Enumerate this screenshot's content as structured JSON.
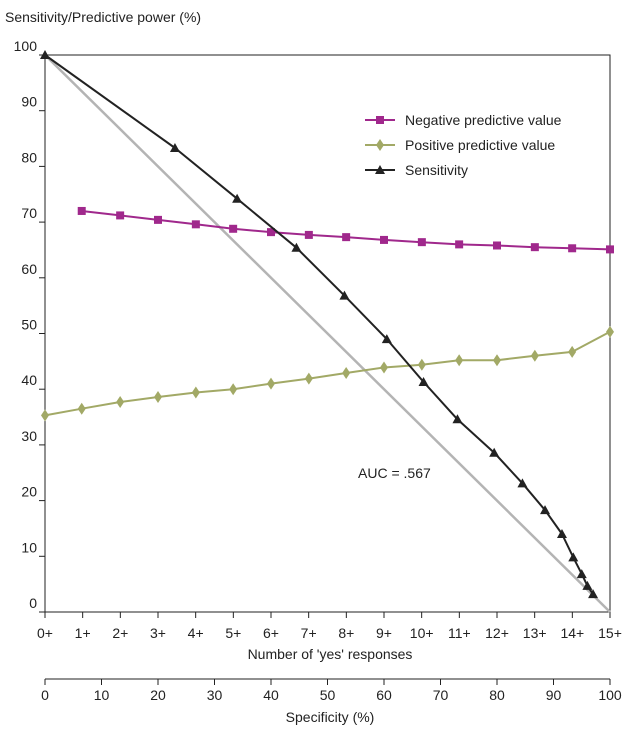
{
  "chart_data": {
    "type": "line",
    "ylabel": "Sensitivity/Predictive power (%)",
    "xlabel": "Number of 'yes' responses",
    "x2label": "Specificity (%)",
    "ylim": [
      0,
      100
    ],
    "y_ticks": [
      "0",
      "10",
      "20",
      "30",
      "40",
      "50",
      "60",
      "70",
      "80",
      "90",
      "100"
    ],
    "x_ticks": [
      "0+",
      "1+",
      "2+",
      "3+",
      "4+",
      "5+",
      "6+",
      "7+",
      "8+",
      "9+",
      "10+",
      "11+",
      "12+",
      "13+",
      "14+",
      "15+"
    ],
    "x2_ticks": [
      "0",
      "10",
      "20",
      "30",
      "40",
      "50",
      "60",
      "70",
      "80",
      "90",
      "100"
    ],
    "x2lim": [
      0,
      100
    ],
    "grid": false,
    "legend_position": "top-right",
    "annotation": "AUC = .567",
    "series": [
      {
        "name": "Negative predictive value",
        "color": "#a0288c",
        "marker": "square",
        "points": [
          [
            6.5,
            72
          ],
          [
            13.3,
            71.2
          ],
          [
            20,
            70.4
          ],
          [
            26.7,
            69.6
          ],
          [
            33.3,
            68.8
          ],
          [
            40,
            68.2
          ],
          [
            46.7,
            67.7
          ],
          [
            53.3,
            67.3
          ],
          [
            60,
            66.8
          ],
          [
            66.7,
            66.4
          ],
          [
            73.3,
            66
          ],
          [
            80,
            65.8
          ],
          [
            86.7,
            65.5
          ],
          [
            93.3,
            65.3
          ],
          [
            100,
            65.1
          ]
        ]
      },
      {
        "name": "Positive predictive value",
        "color": "#a2a966",
        "marker": "diamond",
        "points": [
          [
            0,
            35.3
          ],
          [
            6.5,
            36.5
          ],
          [
            13.3,
            37.7
          ],
          [
            20,
            38.6
          ],
          [
            26.7,
            39.4
          ],
          [
            33.3,
            40
          ],
          [
            40,
            41
          ],
          [
            46.7,
            41.9
          ],
          [
            53.3,
            42.9
          ],
          [
            60,
            43.9
          ],
          [
            66.7,
            44.4
          ],
          [
            73.3,
            45.2
          ],
          [
            80,
            45.2
          ],
          [
            86.7,
            46
          ],
          [
            93.3,
            46.7
          ],
          [
            100,
            50.3
          ]
        ]
      },
      {
        "name": "Sensitivity",
        "color": "#222222",
        "marker": "triangle",
        "points": [
          [
            0,
            100
          ],
          [
            23,
            83.3
          ],
          [
            34,
            74.2
          ],
          [
            44.5,
            65.4
          ],
          [
            53,
            56.8
          ],
          [
            60.5,
            49
          ],
          [
            67,
            41.3
          ],
          [
            73,
            34.6
          ],
          [
            79.5,
            28.6
          ],
          [
            84.5,
            23.1
          ],
          [
            88.5,
            18.3
          ],
          [
            91.5,
            14
          ],
          [
            93.5,
            9.8
          ],
          [
            95,
            6.8
          ],
          [
            96,
            4.7
          ],
          [
            97,
            3.2
          ]
        ]
      },
      {
        "name": "",
        "color": "#b4b4b4",
        "marker": "none",
        "points": [
          [
            0,
            100
          ],
          [
            100,
            0
          ]
        ]
      }
    ]
  }
}
